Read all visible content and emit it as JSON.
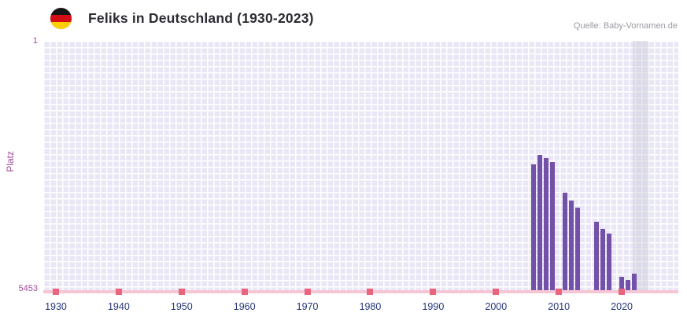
{
  "header": {
    "title": "Feliks in Deutschland (1930-2023)",
    "source": "Quelle: Baby-Vornamen.de",
    "flag_icon": "germany-flag"
  },
  "chart_data": {
    "type": "bar",
    "title": "Feliks in Deutschland (1930-2023)",
    "xlabel": "",
    "ylabel": "Platz",
    "y_axis": {
      "top_label": "1",
      "bottom_label": "5453",
      "min": 1,
      "max": 5453,
      "inverted": true
    },
    "x_axis": {
      "left_year": 1928,
      "right_year": 2029,
      "tick_years": [
        1930,
        1940,
        1950,
        1960,
        1970,
        1980,
        1990,
        2000,
        2010,
        2020
      ]
    },
    "bars": [
      {
        "year": 2006,
        "rank": 2690
      },
      {
        "year": 2007,
        "rank": 2480
      },
      {
        "year": 2008,
        "rank": 2550
      },
      {
        "year": 2009,
        "rank": 2640
      },
      {
        "year": 2011,
        "rank": 3310
      },
      {
        "year": 2012,
        "rank": 3480
      },
      {
        "year": 2013,
        "rank": 3630
      },
      {
        "year": 2016,
        "rank": 3940
      },
      {
        "year": 2017,
        "rank": 4100
      },
      {
        "year": 2018,
        "rank": 4200
      },
      {
        "year": 2020,
        "rank": 5140
      },
      {
        "year": 2021,
        "rank": 5210
      },
      {
        "year": 2022,
        "rank": 5080
      }
    ],
    "highlight_year": 2023,
    "grid": true,
    "legend": "none",
    "colors": {
      "bar": "#7351a8",
      "plot_cell": "#e9e6f6",
      "plot_line": "#ffffff",
      "highlight_band": "rgba(205,205,218,0.5)",
      "axis_line": "#f6c6d4",
      "axis_tick": "#e8657e",
      "x_label": "#27397b",
      "y_label": "#a24b9e",
      "title": "#2b2b33",
      "source": "#9a9aa2"
    }
  }
}
